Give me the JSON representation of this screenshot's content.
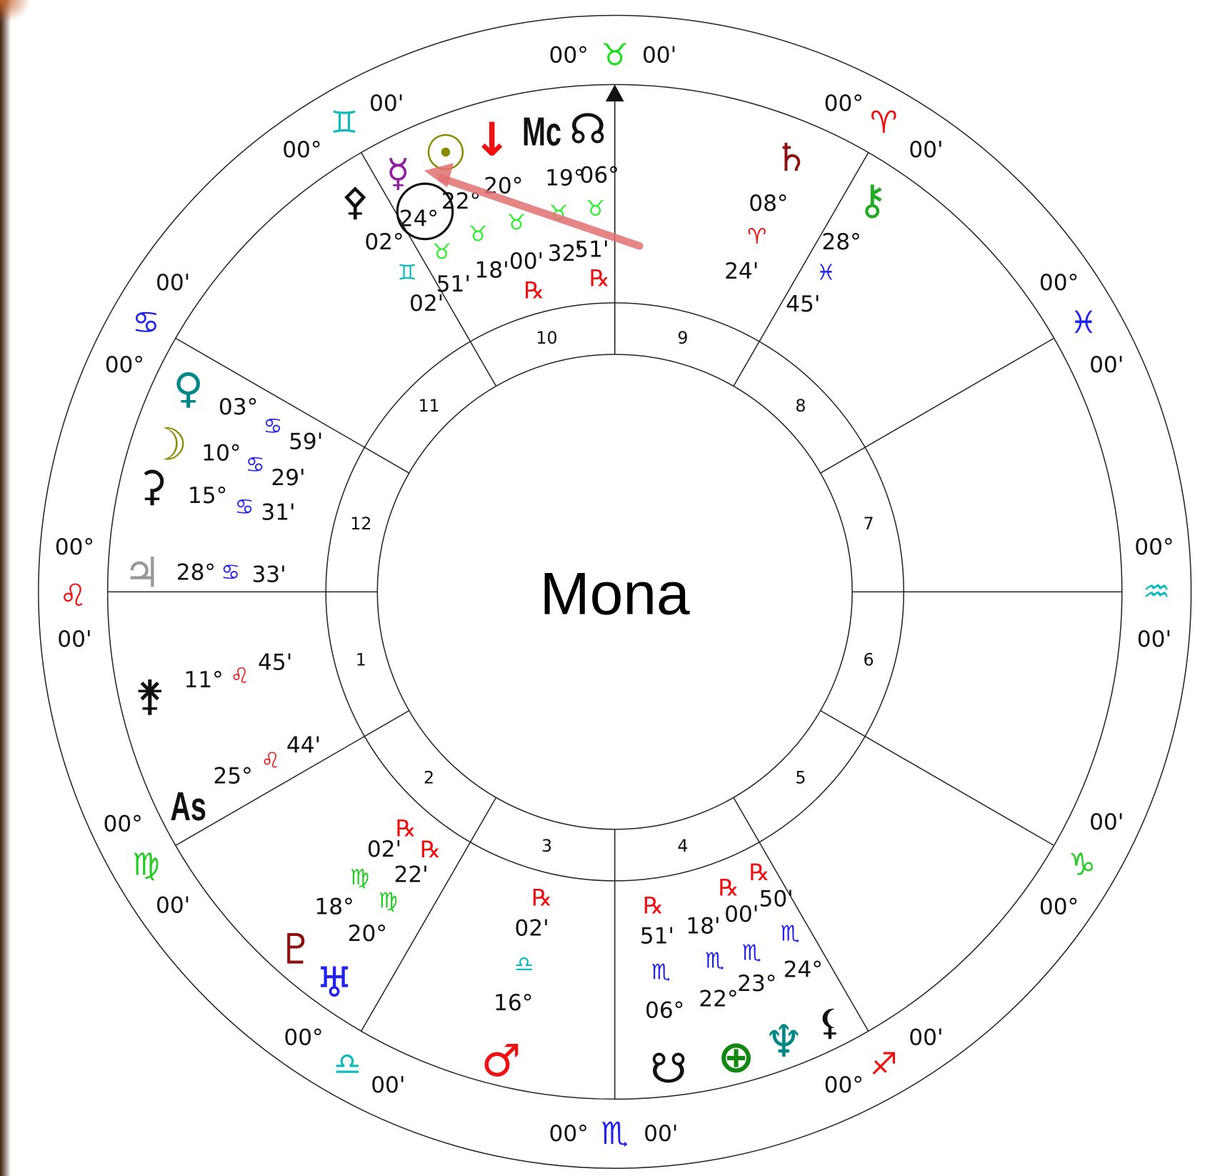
{
  "center_label": "Mona",
  "house_numbers": [
    1,
    2,
    3,
    4,
    5,
    6,
    7,
    8,
    9,
    10,
    11,
    12
  ],
  "sign_cusps": [
    {
      "degree": "00°",
      "sign": "♉",
      "minutes": "00'",
      "color": "#22dd22"
    },
    {
      "degree": "00°",
      "sign": "♈",
      "minutes": "00'",
      "color": "#ee1111"
    },
    {
      "degree": "00°",
      "sign": "♓",
      "minutes": "00'",
      "color": "#2222ee"
    },
    {
      "degree": "00°",
      "sign": "♒",
      "minutes": "00'",
      "color": "#11bbbb"
    },
    {
      "degree": "00°",
      "sign": "♑",
      "minutes": "00'",
      "color": "#22cc22"
    },
    {
      "degree": "00°",
      "sign": "♐",
      "minutes": "00'",
      "color": "#ee1111"
    },
    {
      "degree": "00°",
      "sign": "♏",
      "minutes": "00'",
      "color": "#2222ee"
    },
    {
      "degree": "00°",
      "sign": "♎",
      "minutes": "00'",
      "color": "#11bbbb"
    },
    {
      "degree": "00°",
      "sign": "♍",
      "minutes": "00'",
      "color": "#22cc22"
    },
    {
      "degree": "00°",
      "sign": "♌",
      "minutes": "00'",
      "color": "#ee1111"
    },
    {
      "degree": "00°",
      "sign": "♋",
      "minutes": "00'",
      "color": "#2222ee"
    },
    {
      "degree": "00°",
      "sign": "♊",
      "minutes": "00'",
      "color": "#11bbbb"
    }
  ],
  "points": [
    {
      "glyph": "☊",
      "degree": "06°",
      "sign": "♉",
      "minutes": "51'",
      "retrograde": "℞",
      "glyph_color": "#111111",
      "sign_color": "#33ee33"
    },
    {
      "glyph": "Mc",
      "degree": "19°",
      "sign": "♉",
      "minutes": "32'",
      "glyph_color": "#111111",
      "sign_color": "#33ee33"
    },
    {
      "glyph": "↓",
      "degree": "20°",
      "sign": "♉",
      "minutes": "00'",
      "retrograde": "℞",
      "glyph_color": "#ee1111",
      "sign_color": "#33ee33"
    },
    {
      "glyph": "☉",
      "degree": "22°",
      "sign": "♉",
      "minutes": "18'",
      "glyph_color": "#8a8a00",
      "sign_color": "#33ee33"
    },
    {
      "glyph": "☿",
      "degree": "24°",
      "sign": "♉",
      "minutes": "51'",
      "glyph_color": "#9020a0",
      "sign_color": "#33ee33"
    },
    {
      "glyph": "⚴",
      "degree": "02°",
      "sign": "♊",
      "minutes": "02'",
      "glyph_color": "#111111",
      "sign_color": "#11bbbb"
    },
    {
      "glyph": "♄",
      "degree": "08°",
      "sign": "♈",
      "minutes": "24'",
      "glyph_color": "#8b1010",
      "sign_color": "#ee1111"
    },
    {
      "glyph": "⚷",
      "degree": "28°",
      "sign": "♓",
      "minutes": "45'",
      "glyph_color": "#22aa22",
      "sign_color": "#2222ee"
    },
    {
      "glyph": "♀",
      "degree": "03°",
      "sign": "♋",
      "minutes": "59'",
      "glyph_color": "#008888",
      "sign_color": "#2222ee"
    },
    {
      "glyph": "☽",
      "degree": "10°",
      "sign": "♋",
      "minutes": "29'",
      "glyph_color": "#8a8a00",
      "sign_color": "#2222ee"
    },
    {
      "glyph": "⚳",
      "degree": "15°",
      "sign": "♋",
      "minutes": "31'",
      "glyph_color": "#111111",
      "sign_color": "#2222ee"
    },
    {
      "glyph": "♃",
      "degree": "28°",
      "sign": "♋",
      "minutes": "33'",
      "glyph_color": "#999999",
      "sign_color": "#2222ee"
    },
    {
      "glyph": "⚵",
      "degree": "11°",
      "sign": "♌",
      "minutes": "45'",
      "glyph_color": "#111111",
      "sign_color": "#ee1111"
    },
    {
      "glyph": "As",
      "degree": "25°",
      "sign": "♌",
      "minutes": "44'",
      "glyph_color": "#111111",
      "sign_color": "#ee1111"
    },
    {
      "glyph": "♇",
      "degree": "18°",
      "sign": "♍",
      "minutes": "02'",
      "retrograde": "℞",
      "glyph_color": "#8b1010",
      "sign_color": "#22cc22"
    },
    {
      "glyph": "♅",
      "degree": "20°",
      "sign": "♍",
      "minutes": "22'",
      "retrograde": "℞",
      "glyph_color": "#2222ee",
      "sign_color": "#22cc22"
    },
    {
      "glyph": "♂",
      "degree": "16°",
      "sign": "♎",
      "minutes": "02'",
      "retrograde": "℞",
      "glyph_color": "#ee1111",
      "sign_color": "#11bbbb"
    },
    {
      "glyph": "☋",
      "degree": "06°",
      "sign": "♏",
      "minutes": "51'",
      "retrograde": "℞",
      "glyph_color": "#111111",
      "sign_color": "#2222ee"
    },
    {
      "glyph": "⊕",
      "degree": "22°",
      "sign": "♏",
      "minutes": "18'",
      "retrograde": "℞",
      "glyph_color": "#118811",
      "sign_color": "#2222ee"
    },
    {
      "glyph": "♆",
      "degree": "23°",
      "sign": "♏",
      "minutes": "00'",
      "retrograde": "℞",
      "glyph_color": "#008888",
      "sign_color": "#2222ee"
    },
    {
      "glyph": "⚸",
      "degree": "24°",
      "sign": "♏",
      "minutes": "50'",
      "glyph_color": "#111111",
      "sign_color": "#2222ee"
    }
  ]
}
